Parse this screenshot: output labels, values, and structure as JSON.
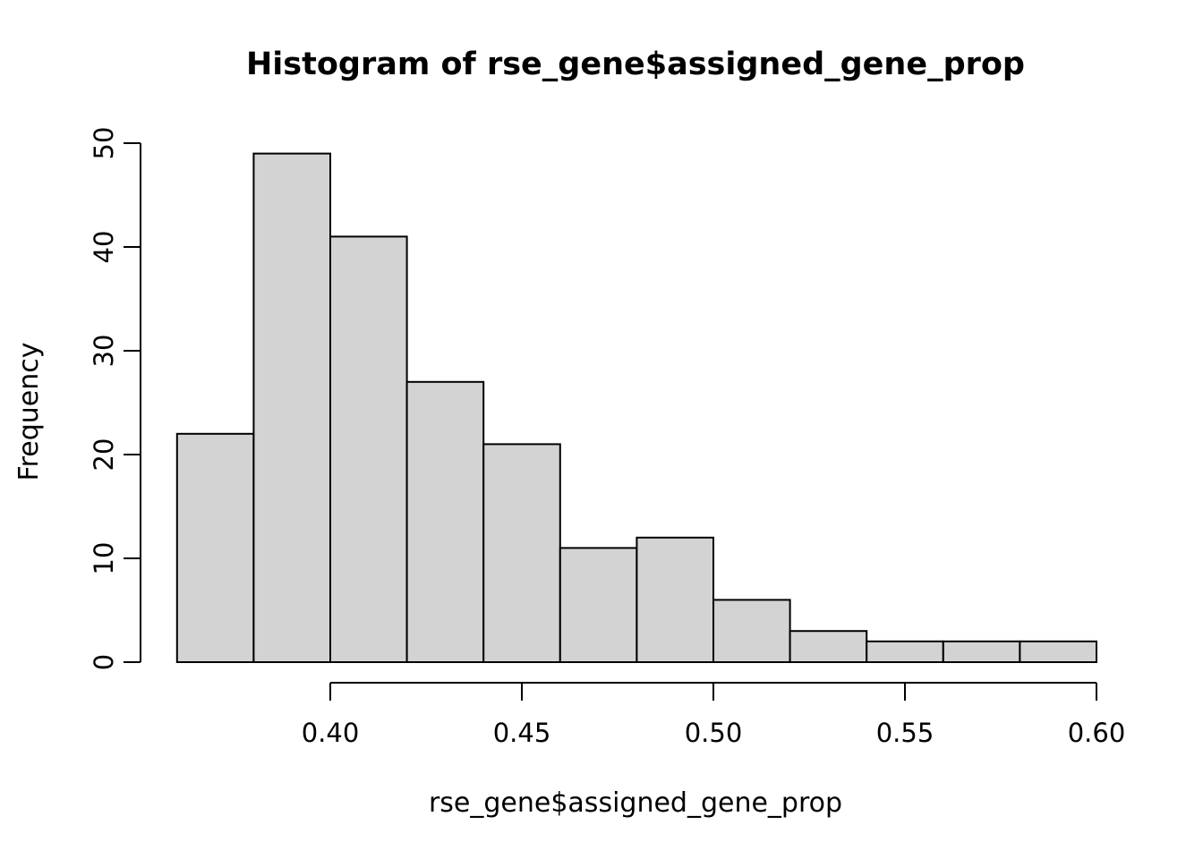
{
  "figure": {
    "title": "Histogram of rse_gene$assigned_gene_prop",
    "x_label": "rse_gene$assigned_gene_prop",
    "y_label": "Frequency"
  },
  "chart_data": {
    "type": "bar",
    "subtype": "histogram",
    "title": "Histogram of rse_gene$assigned_gene_prop",
    "xlabel": "rse_gene$assigned_gene_prop",
    "ylabel": "Frequency",
    "bin_breaks": [
      0.36,
      0.38,
      0.4,
      0.42,
      0.44,
      0.46,
      0.48,
      0.5,
      0.52,
      0.54,
      0.56,
      0.58,
      0.6
    ],
    "counts": [
      22,
      49,
      41,
      27,
      21,
      11,
      12,
      6,
      3,
      2,
      2,
      2
    ],
    "total_count": 198,
    "xlim": [
      0.36,
      0.6
    ],
    "ylim": [
      0,
      50
    ],
    "x_ticks": [
      0.4,
      0.45,
      0.5,
      0.55,
      0.6
    ],
    "x_tick_labels": [
      "0.40",
      "0.45",
      "0.50",
      "0.55",
      "0.60"
    ],
    "y_ticks": [
      0,
      10,
      20,
      30,
      40,
      50
    ],
    "y_tick_labels": [
      "0",
      "10",
      "20",
      "30",
      "40",
      "50"
    ],
    "grid": false,
    "legend_position": "none",
    "bar_fill": "#d3d3d3",
    "bar_stroke": "#000000",
    "axis_color": "#000000",
    "background": "#ffffff"
  }
}
